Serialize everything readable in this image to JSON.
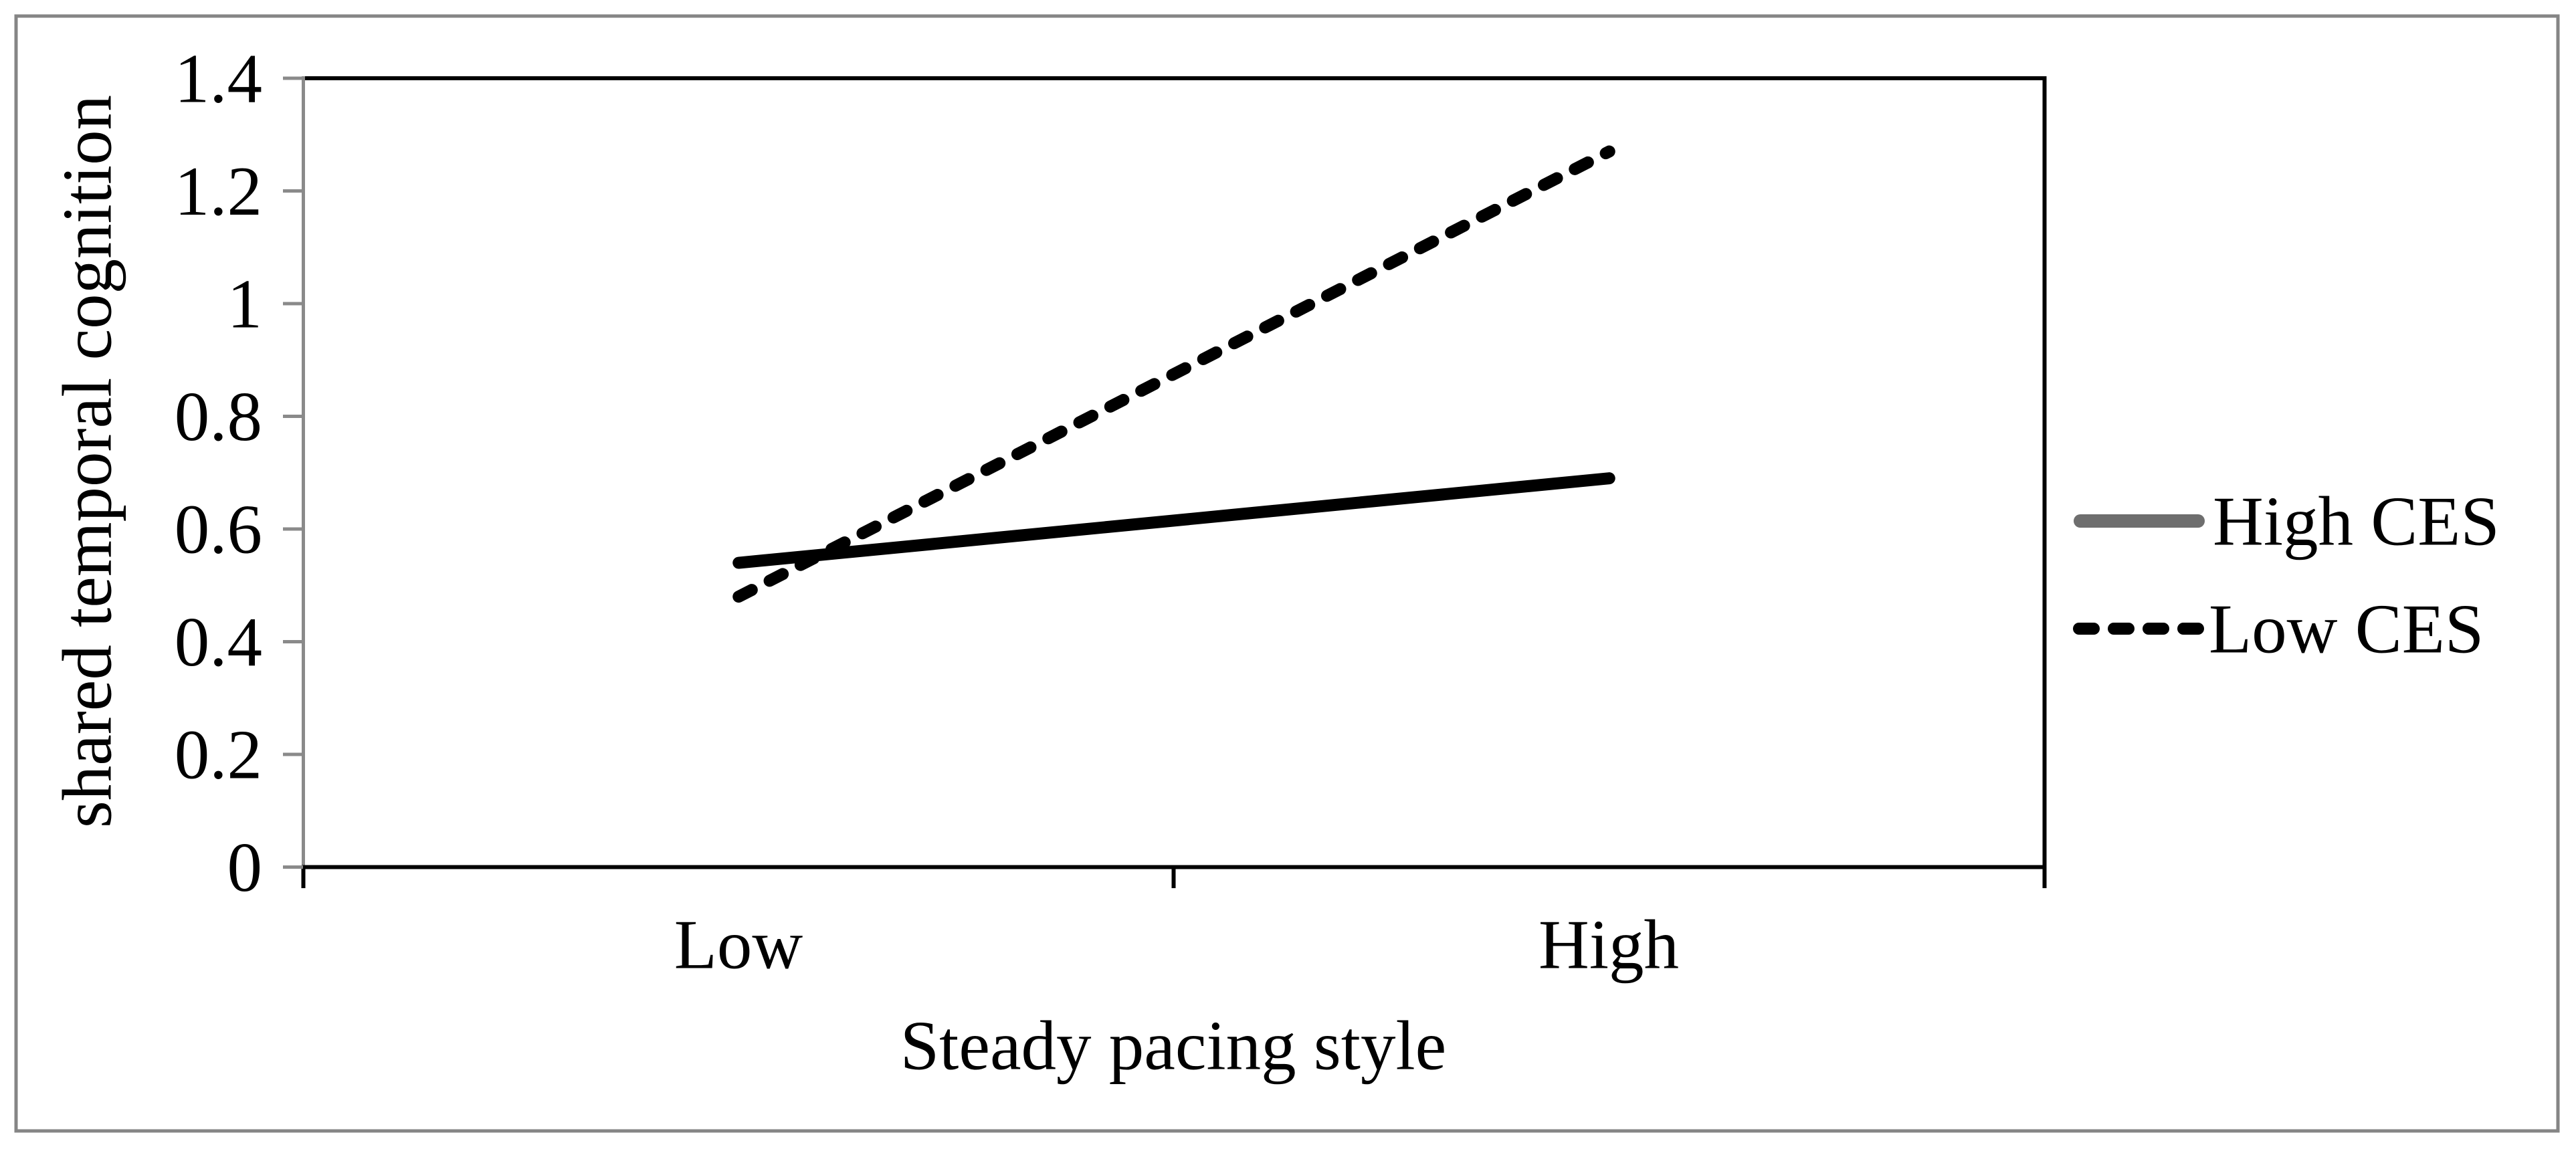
{
  "chart_data": {
    "type": "line",
    "title": "",
    "categories": [
      "Low",
      "High"
    ],
    "series": [
      {
        "name": "High CES",
        "values": [
          0.54,
          0.69
        ],
        "style": "solid",
        "color": "#000000",
        "legend_swatch_color": "#6e6e6e"
      },
      {
        "name": "Low CES",
        "values": [
          0.48,
          1.27
        ],
        "style": "dashed",
        "color": "#000000",
        "legend_swatch_color": "#000000"
      }
    ],
    "xlabel": "Steady pacing style",
    "ylabel": "shared temporal cognition",
    "ylim": [
      0,
      1.4
    ],
    "ytick_step": 0.2,
    "ytick_labels": [
      "0",
      "0.2",
      "0.4",
      "0.6",
      "0.8",
      "1",
      "1.2",
      "1.4"
    ],
    "legend_position": "right",
    "grid": false,
    "axis_color": "#8a8a8a",
    "figure_border_color": "#858585",
    "plot_frame_color": "#000000"
  }
}
